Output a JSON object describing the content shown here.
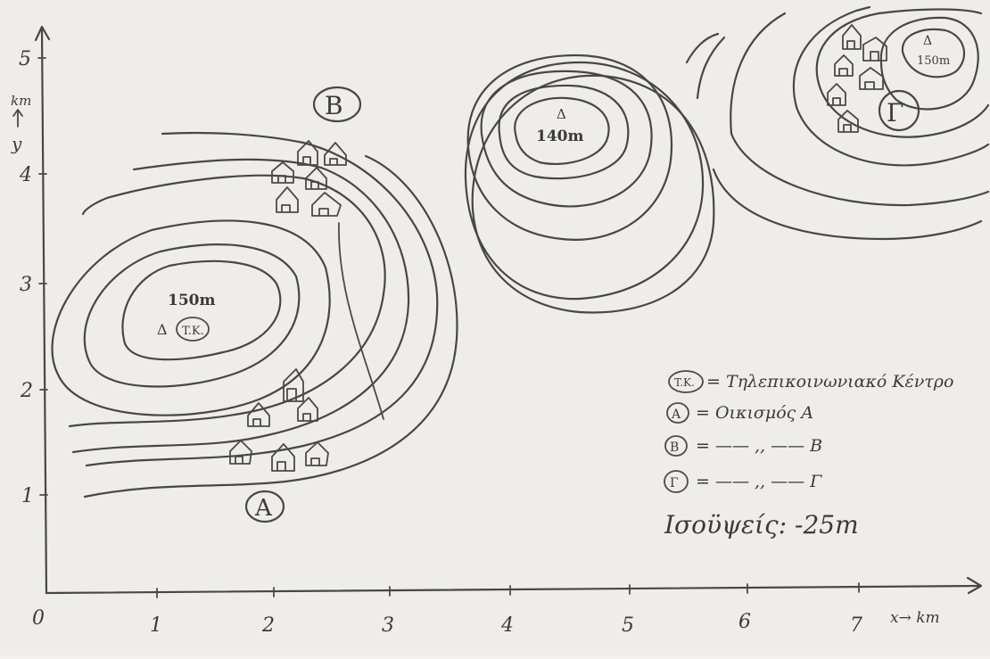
{
  "axes": {
    "x_label": "x→ km",
    "y_label_unit": "km",
    "y_label_var": "y",
    "origin": "0",
    "x_ticks": [
      "1",
      "2",
      "3",
      "4",
      "5",
      "6",
      "7"
    ],
    "y_ticks": [
      "1",
      "2",
      "3",
      "4",
      "5"
    ]
  },
  "peaks": [
    {
      "label": "150m",
      "marker": "Δ"
    },
    {
      "label": "140m",
      "marker": "Δ"
    },
    {
      "label": "150m",
      "marker": "Δ"
    }
  ],
  "map_labels": {
    "telecom_center": "T.K.",
    "village_a": "A",
    "village_b": "B",
    "village_g": "Γ"
  },
  "legend": {
    "items": [
      {
        "symbol": "T.K.",
        "text": "= Τηλεπικοινωνιακό Κέντρο"
      },
      {
        "symbol": "A",
        "text": "= Οικισμός  A"
      },
      {
        "symbol": "B",
        "text": "=  —— ,, ——  B"
      },
      {
        "symbol": "Γ",
        "text": "=  —— ,, ——  Γ"
      }
    ],
    "contour_interval": "Ισοϋψείς: -25m"
  },
  "colors": {
    "paper": "#eeede9",
    "ink": "#474747"
  }
}
